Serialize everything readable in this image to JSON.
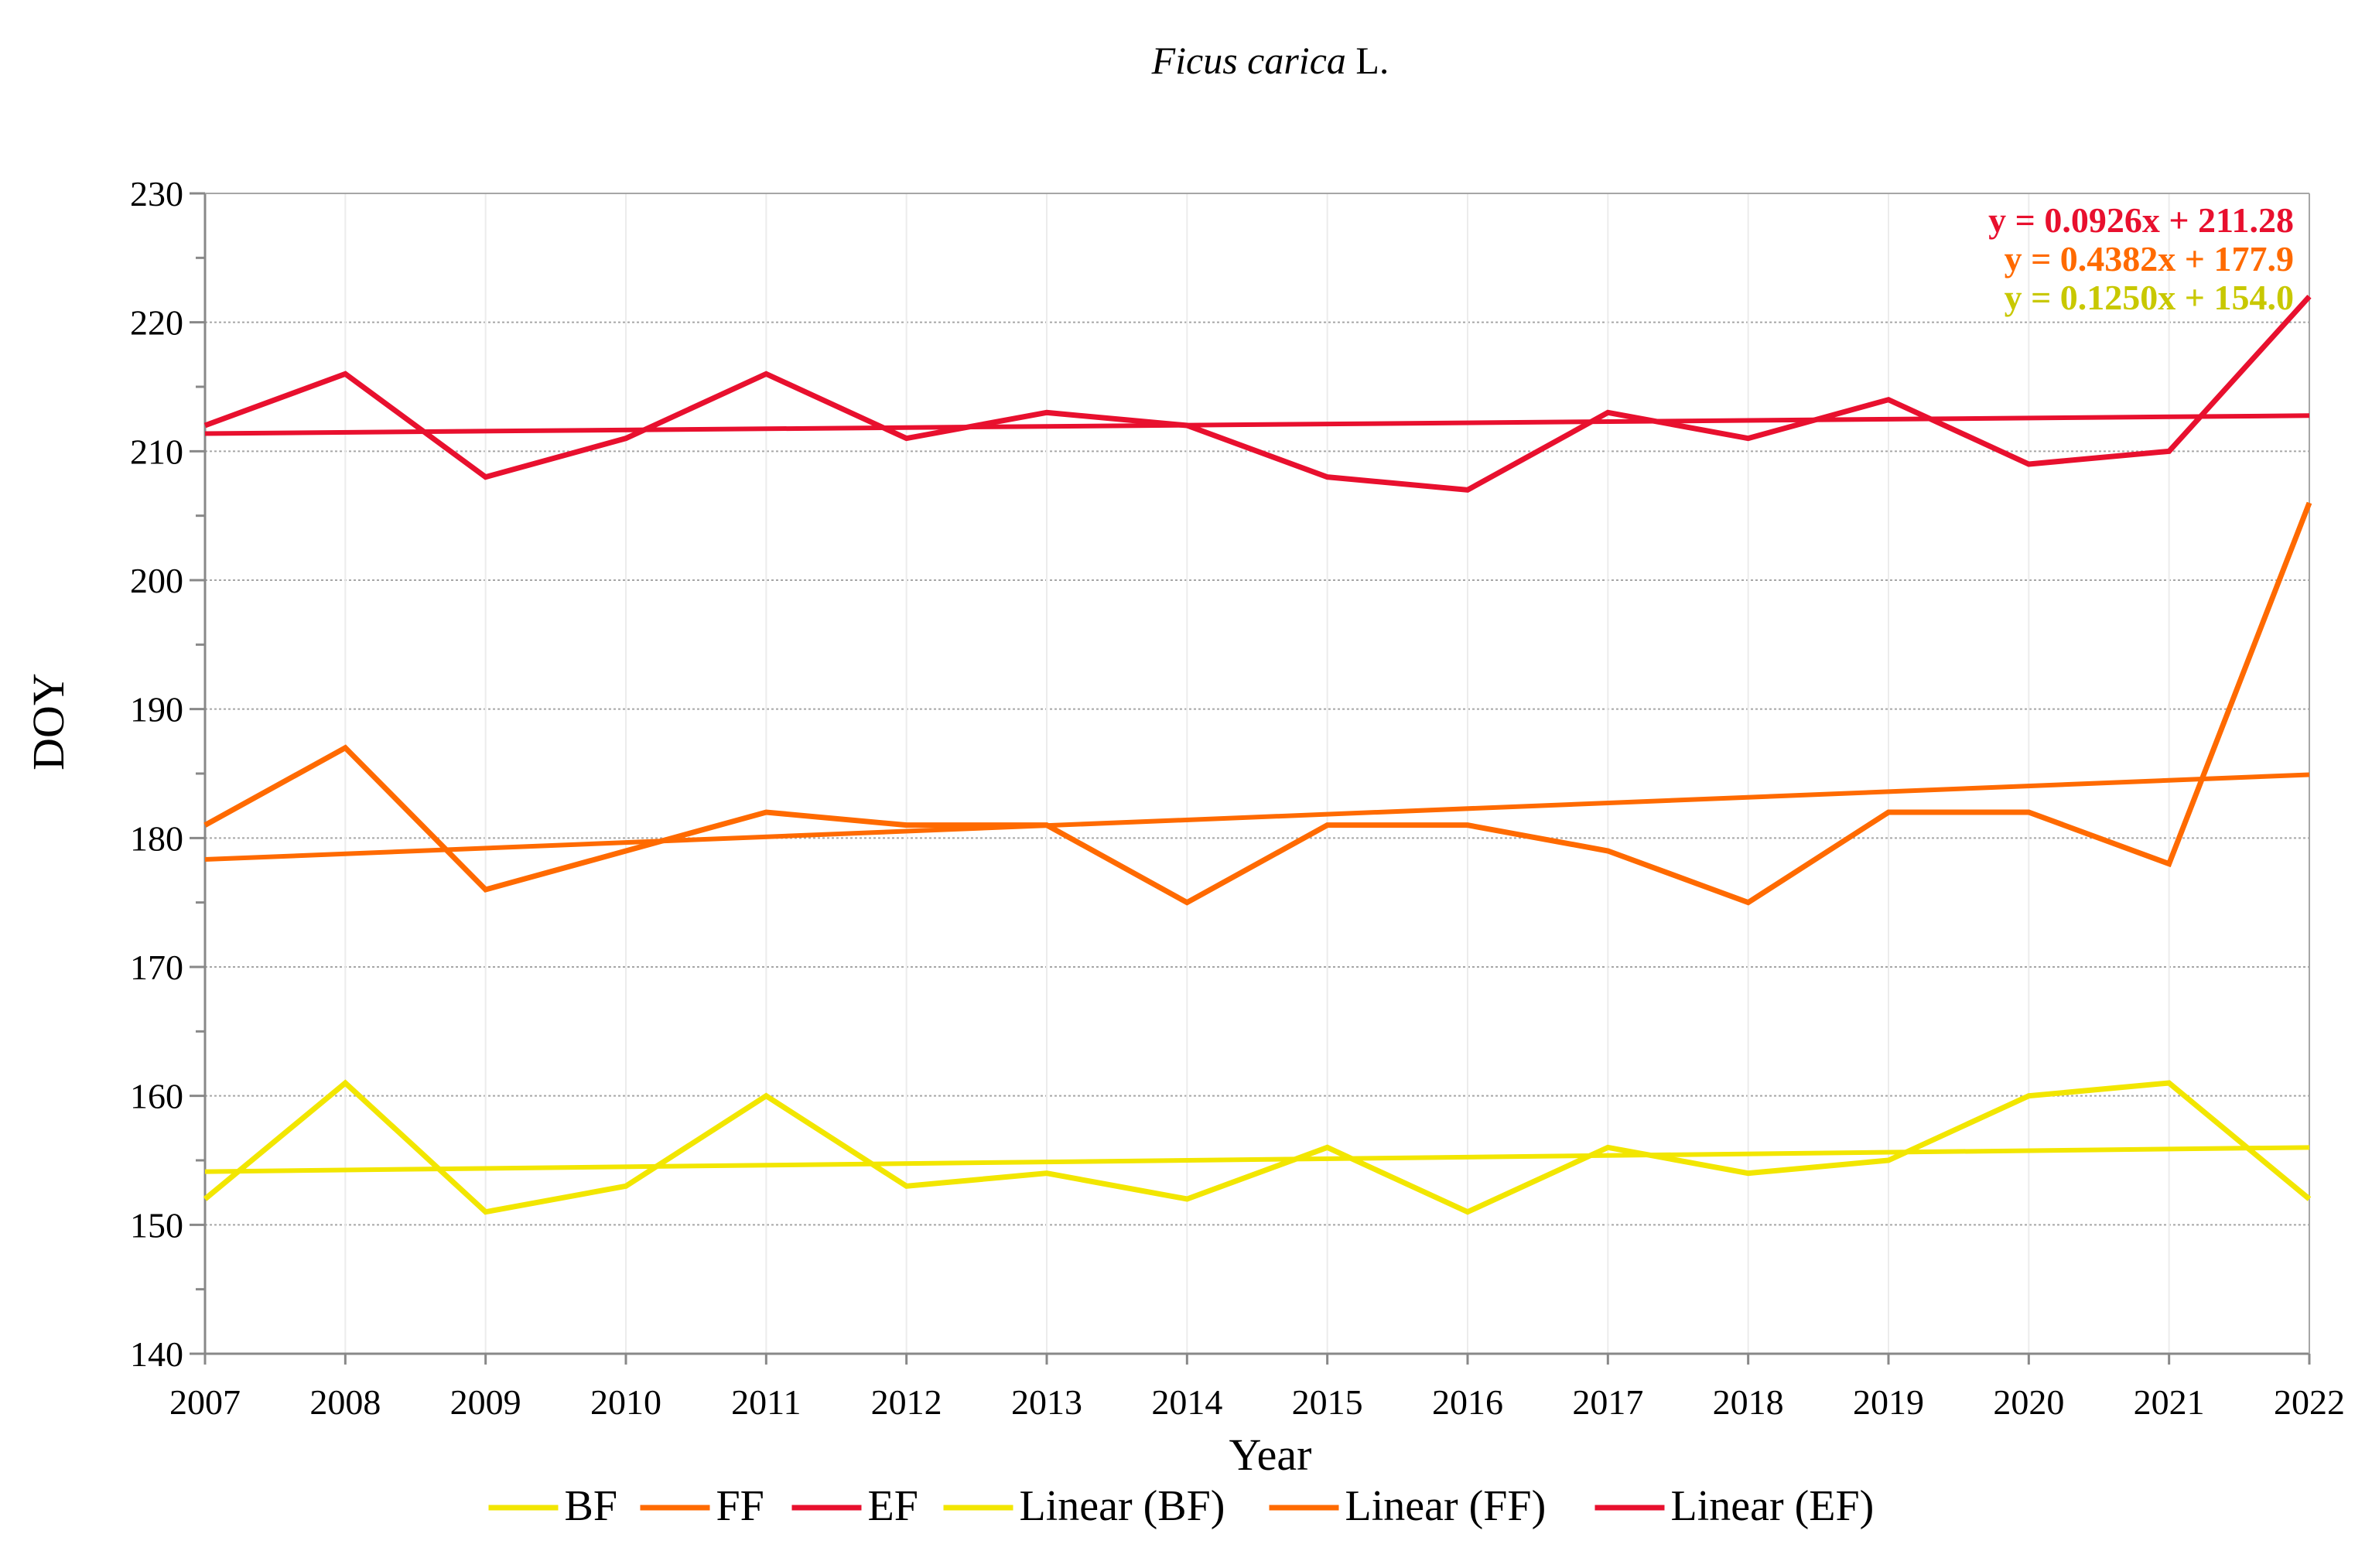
{
  "chart_data": {
    "type": "line",
    "title_italic": "Ficus carica",
    "title_suffix": " L.",
    "xlabel": "Year",
    "ylabel": "DOY",
    "ylim": [
      140,
      230
    ],
    "y_major_step": 10,
    "y_minor_step": 5,
    "categories": [
      "2007",
      "2008",
      "2009",
      "2010",
      "2011",
      "2012",
      "2013",
      "2014",
      "2015",
      "2016",
      "2017",
      "2018",
      "2019",
      "2020",
      "2021",
      "2022"
    ],
    "series": [
      {
        "key": "bf",
        "name": "BF",
        "color": "#f2e600",
        "values": [
          152,
          161,
          151,
          153,
          160,
          153,
          154,
          152,
          156,
          151,
          156,
          154,
          155,
          160,
          161,
          152
        ]
      },
      {
        "key": "ff",
        "name": "FF",
        "color": "#ff6a00",
        "values": [
          181,
          187,
          176,
          179,
          182,
          181,
          181,
          175,
          181,
          181,
          179,
          175,
          182,
          182,
          178,
          206
        ]
      },
      {
        "key": "ef",
        "name": "EF",
        "color": "#e8102e",
        "values": [
          212,
          216,
          208,
          211,
          216,
          211,
          213,
          212,
          208,
          207,
          213,
          211,
          214,
          209,
          210,
          222
        ]
      }
    ],
    "trendlines": [
      {
        "key": "bf",
        "name": "Linear (BF)",
        "color": "#f2e600",
        "slope": 0.125,
        "intercept": 154.0
      },
      {
        "key": "ff",
        "name": "Linear (FF)",
        "color": "#ff6a00",
        "slope": 0.4382,
        "intercept": 177.9
      },
      {
        "key": "ef",
        "name": "Linear (EF)",
        "color": "#e8102e",
        "slope": 0.0926,
        "intercept": 211.28
      }
    ],
    "equations": [
      {
        "text": "y = 0.0926x + 211.28",
        "color": "#e8102e"
      },
      {
        "text": "y = 0.4382x + 177.9",
        "color": "#ff6a00"
      },
      {
        "text": "y = 0.1250x + 154.0",
        "color": "#c8c800"
      }
    ],
    "legend": [
      "BF",
      "FF",
      "EF",
      "Linear (BF)",
      "Linear (FF)",
      "Linear (EF)"
    ],
    "legend_colors": [
      "#f2e600",
      "#ff6a00",
      "#e8102e",
      "#f2e600",
      "#ff6a00",
      "#e8102e"
    ],
    "grid": true,
    "legend_position": "bottom"
  }
}
